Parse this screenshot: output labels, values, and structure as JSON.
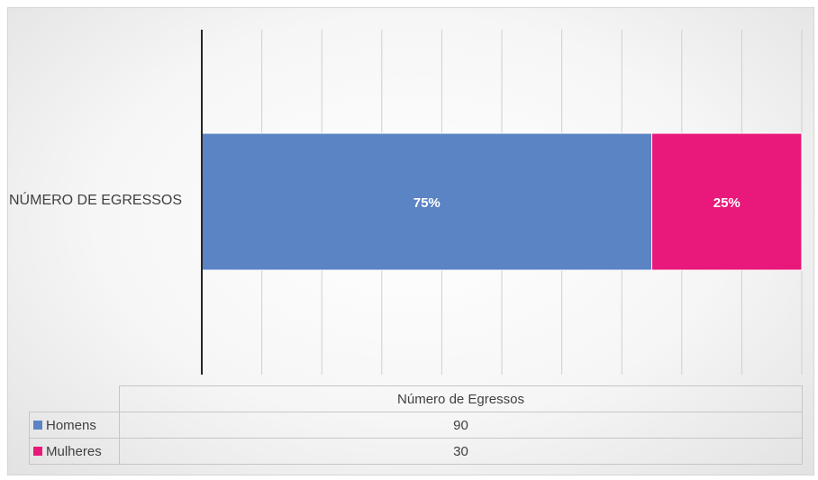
{
  "chart_data": {
    "type": "bar",
    "orientation": "horizontal",
    "stacking": "percent",
    "categories": [
      "NÚMERO DE EGRESSOS"
    ],
    "series": [
      {
        "name": "Homens",
        "values": [
          90
        ],
        "label": "75%",
        "color": "#5b84c4"
      },
      {
        "name": "Mulheres",
        "values": [
          30
        ],
        "label": "25%",
        "color": "#e8197a"
      }
    ],
    "xlim": [
      0,
      1
    ],
    "grid": true,
    "legend": "data-table-bottom",
    "table": {
      "header": "Número de Egressos",
      "rows": [
        {
          "key": "Homens",
          "value": "90"
        },
        {
          "key": "Mulheres",
          "value": "30"
        }
      ]
    }
  }
}
